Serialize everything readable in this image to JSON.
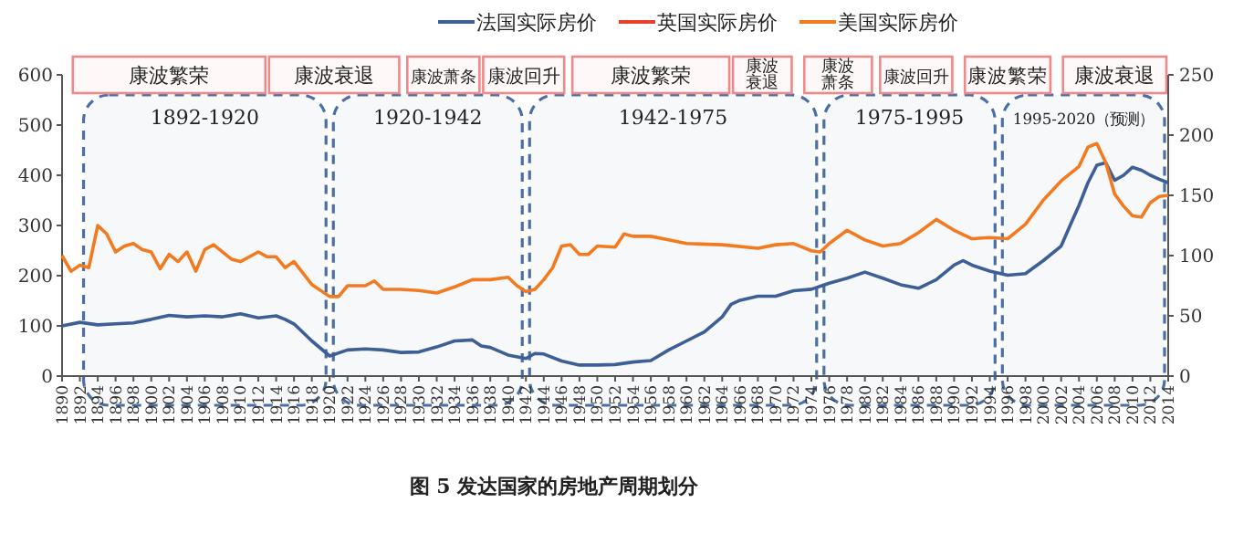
{
  "chart_data": {
    "type": "line",
    "title": "图 5   发达国家的房地产周期划分",
    "xlim": [
      1890,
      2014
    ],
    "xticks": [
      1890,
      1892,
      1894,
      1896,
      1898,
      1900,
      1902,
      1904,
      1906,
      1908,
      1910,
      1912,
      1914,
      1916,
      1918,
      1920,
      1922,
      1924,
      1926,
      1928,
      1930,
      1932,
      1934,
      1936,
      1938,
      1940,
      1942,
      1944,
      1946,
      1948,
      1950,
      1952,
      1954,
      1956,
      1958,
      1960,
      1962,
      1964,
      1966,
      1968,
      1970,
      1972,
      1974,
      1976,
      1978,
      1980,
      1982,
      1984,
      1986,
      1988,
      1990,
      1992,
      1994,
      1996,
      1998,
      2000,
      2002,
      2004,
      2006,
      2008,
      2010,
      2012,
      2014
    ],
    "ylim": [
      0,
      600
    ],
    "yticks": [
      0,
      100,
      200,
      300,
      400,
      500,
      600
    ],
    "y2lim": [
      0,
      250
    ],
    "y2ticks": [
      0,
      50,
      100,
      150,
      200,
      250
    ],
    "legend": "top",
    "grid": false,
    "series": [
      {
        "name": "法国实际房价",
        "color": "#3d5f96",
        "x": [
          1890,
          1892,
          1894,
          1896,
          1898,
          1900,
          1902,
          1904,
          1906,
          1908,
          1910,
          1912,
          1914,
          1915,
          1916,
          1918,
          1920,
          1922,
          1924,
          1926,
          1928,
          1930,
          1932,
          1934,
          1936,
          1937,
          1938,
          1940,
          1942,
          1943,
          1944,
          1946,
          1948,
          1950,
          1952,
          1954,
          1956,
          1958,
          1960,
          1962,
          1964,
          1965,
          1966,
          1968,
          1970,
          1972,
          1974,
          1976,
          1978,
          1980,
          1982,
          1984,
          1986,
          1988,
          1990,
          1991,
          1992,
          1994,
          1996,
          1998,
          2000,
          2002,
          2003,
          2004,
          2005,
          2006,
          2007,
          2008,
          2009,
          2010,
          2011,
          2012,
          2013,
          2014
        ],
        "values": [
          100,
          107,
          102,
          104,
          106,
          113,
          121,
          118,
          120,
          118,
          124,
          116,
          120,
          113,
          104,
          70,
          40,
          52,
          54,
          52,
          47,
          48,
          58,
          70,
          72,
          60,
          57,
          42,
          35,
          45,
          44,
          30,
          22,
          22,
          23,
          28,
          31,
          52,
          70,
          88,
          118,
          143,
          151,
          159,
          159,
          170,
          173,
          185,
          195,
          207,
          195,
          182,
          175,
          192,
          221,
          230,
          221,
          209,
          201,
          204,
          230,
          259,
          300,
          340,
          385,
          420,
          425,
          390,
          400,
          416,
          410,
          400,
          392,
          385
        ]
      },
      {
        "name": "英国实际房价",
        "color": "#e8402a"
      },
      {
        "name": "美国实际房价",
        "color": "#f47a20",
        "axis": "y2",
        "x": [
          1890,
          1891,
          1892,
          1893,
          1894,
          1895,
          1896,
          1897,
          1898,
          1899,
          1900,
          1901,
          1902,
          1903,
          1904,
          1905,
          1906,
          1907,
          1908,
          1909,
          1910,
          1912,
          1913,
          1914,
          1915,
          1916,
          1918,
          1920,
          1921,
          1922,
          1924,
          1925,
          1926,
          1928,
          1930,
          1932,
          1934,
          1936,
          1938,
          1940,
          1941,
          1942,
          1943,
          1944,
          1945,
          1946,
          1947,
          1948,
          1949,
          1950,
          1952,
          1953,
          1954,
          1956,
          1958,
          1960,
          1964,
          1968,
          1970,
          1972,
          1974,
          1975,
          1976,
          1978,
          1980,
          1982,
          1984,
          1986,
          1988,
          1990,
          1992,
          1994,
          1996,
          1998,
          2000,
          2002,
          2004,
          2005,
          2006,
          2007,
          2008,
          2009,
          2010,
          2011,
          2012,
          2013,
          2014
        ],
        "values": [
          100,
          87,
          92,
          90,
          125,
          118,
          103,
          108,
          110,
          105,
          103,
          89,
          101,
          95,
          103,
          87,
          105,
          109,
          103,
          97,
          95,
          103,
          99,
          99,
          90,
          95,
          76,
          66,
          66,
          75,
          75,
          79,
          72,
          72,
          71,
          69,
          74,
          80,
          80,
          82,
          75,
          70,
          72,
          80,
          90,
          108,
          109,
          101,
          101,
          108,
          107,
          118,
          116,
          116,
          113,
          110,
          109,
          106,
          109,
          110,
          104,
          103,
          110,
          121,
          113,
          108,
          110,
          119,
          130,
          121,
          114,
          115,
          114,
          126,
          146,
          162,
          174,
          190,
          193,
          177,
          151,
          141,
          133,
          132,
          144,
          149,
          150
        ]
      }
    ],
    "bands": [
      {
        "axis": "x",
        "from": 1892,
        "to": 1920,
        "label": "1892-1920",
        "color": "#4a6fa5"
      },
      {
        "axis": "x",
        "from": 1920,
        "to": 1942,
        "label": "1920-1942",
        "color": "#4a6fa5"
      },
      {
        "axis": "x",
        "from": 1942,
        "to": 1975,
        "label": "1942-1975",
        "color": "#4a6fa5"
      },
      {
        "axis": "x",
        "from": 1975,
        "to": 1995,
        "label": "1975-1995",
        "color": "#4a6fa5"
      },
      {
        "axis": "x",
        "from": 1995,
        "to": 2014,
        "label": "1995-2020（预测）",
        "color": "#4a6fa5"
      },
      {
        "axis": "x",
        "from": 1891,
        "to": 1913,
        "label": "康波繁荣",
        "color": "#f08a8a"
      },
      {
        "axis": "x",
        "from": 1913,
        "to": 1928,
        "label": "康波衰退",
        "color": "#f08a8a"
      },
      {
        "axis": "x",
        "from": 1928.5,
        "to": 1937,
        "label": "康波萧条",
        "color": "#f08a8a"
      },
      {
        "axis": "x",
        "from": 1937,
        "to": 1946.5,
        "label": "康波回升",
        "color": "#f08a8a"
      },
      {
        "axis": "x",
        "from": 1947,
        "to": 1965,
        "label": "康波繁荣",
        "color": "#f08a8a"
      },
      {
        "axis": "x",
        "from": 1965,
        "to": 1972,
        "label": "康波衰退",
        "color": "#f08a8a"
      },
      {
        "axis": "x",
        "from": 1973,
        "to": 1981,
        "label": "康波萧条",
        "color": "#f08a8a"
      },
      {
        "axis": "x",
        "from": 1981.5,
        "to": 1990,
        "label": "康波回升",
        "color": "#f08a8a"
      },
      {
        "axis": "x",
        "from": 1991,
        "to": 2001,
        "label": "康波繁荣",
        "color": "#f08a8a"
      },
      {
        "axis": "x",
        "from": 2002,
        "to": 2014,
        "label": "康波衰退",
        "color": "#f08a8a"
      }
    ]
  }
}
